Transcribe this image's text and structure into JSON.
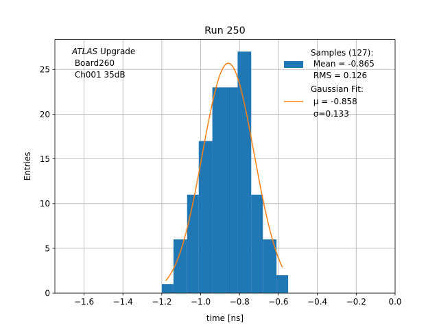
{
  "chart_data": {
    "type": "bar",
    "title": "Run 250",
    "xlabel": "time [ns]",
    "ylabel": "Entries",
    "xlim": [
      -1.75,
      0.0
    ],
    "ylim": [
      0,
      28.35
    ],
    "grid": true,
    "x_ticks": [
      -1.6,
      -1.4,
      -1.2,
      -1.0,
      -0.8,
      -0.6,
      -0.4,
      -0.2,
      0.0
    ],
    "x_tick_labels": [
      "−1.6",
      "−1.4",
      "−1.2",
      "−1.0",
      "−0.8",
      "−0.6",
      "−0.4",
      "−0.2",
      "0.0"
    ],
    "y_ticks": [
      0,
      5,
      10,
      15,
      20,
      25
    ],
    "y_tick_labels": [
      "0",
      "5",
      "10",
      "15",
      "20",
      "25"
    ],
    "histogram": {
      "name": "Samples (127):",
      "color": "#1f77b4",
      "bins": [
        {
          "x0": -1.2,
          "x1": -1.14,
          "count": 1
        },
        {
          "x0": -1.14,
          "x1": -1.07,
          "count": 6
        },
        {
          "x0": -1.07,
          "x1": -1.01,
          "count": 11
        },
        {
          "x0": -1.01,
          "x1": -0.94,
          "count": 17
        },
        {
          "x0": -0.94,
          "x1": -0.87,
          "count": 23
        },
        {
          "x0": -0.87,
          "x1": -0.81,
          "count": 23
        },
        {
          "x0": -0.81,
          "x1": -0.74,
          "count": 27
        },
        {
          "x0": -0.74,
          "x1": -0.68,
          "count": 11
        },
        {
          "x0": -0.68,
          "x1": -0.61,
          "count": 6
        },
        {
          "x0": -0.61,
          "x1": -0.55,
          "count": 2
        }
      ]
    },
    "fit": {
      "name": "Gaussian Fit:",
      "color": "#ff7f0e",
      "mu": -0.858,
      "sigma": 0.133,
      "amplitude": 25.7,
      "x_range": [
        -1.18,
        -0.58
      ]
    },
    "legend": {
      "placement": "top-right",
      "samples_lines": [
        "Samples (127):",
        " Mean = -0.865",
        " RMS = 0.126"
      ],
      "fit_lines": [
        "Gaussian Fit:",
        " μ = -0.858",
        " σ=0.133"
      ]
    },
    "annotation": {
      "italic": "ATLAS",
      "rest": " Upgrade",
      "line2": " Board260",
      "line3": " Ch001 35dB"
    }
  }
}
